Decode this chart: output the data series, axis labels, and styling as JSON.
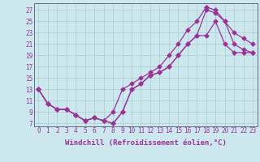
{
  "background_color": "#cce8ee",
  "grid_color": "#aacccc",
  "line_color": "#993399",
  "marker": "D",
  "markersize": 2.5,
  "linewidth": 0.9,
  "xlabel": "Windchill (Refroidissement éolien,°C)",
  "xlabel_fontsize": 6.5,
  "tick_fontsize": 5.5,
  "ylabel_ticks": [
    7,
    9,
    11,
    13,
    15,
    17,
    19,
    21,
    23,
    25,
    27
  ],
  "xlabel_ticks": [
    0,
    1,
    2,
    3,
    4,
    5,
    6,
    7,
    8,
    9,
    10,
    11,
    12,
    13,
    14,
    15,
    16,
    17,
    18,
    19,
    20,
    21,
    22,
    23
  ],
  "xlim": [
    -0.5,
    23.5
  ],
  "ylim": [
    6.5,
    28.2
  ],
  "line1_x": [
    0,
    1,
    2,
    3,
    4,
    5,
    6,
    7,
    8,
    9,
    10,
    11,
    12,
    13,
    14,
    15,
    16,
    17,
    18,
    19,
    20,
    21,
    22,
    23
  ],
  "line1_y": [
    13,
    10.5,
    9.5,
    9.5,
    8.5,
    7.5,
    8,
    7.5,
    7,
    9,
    13,
    14,
    15.5,
    16,
    17,
    19,
    21,
    22.5,
    22.5,
    25,
    21,
    19.5,
    19.5,
    19.5
  ],
  "line2_x": [
    0,
    1,
    2,
    3,
    4,
    5,
    6,
    7,
    8,
    9,
    10,
    11,
    12,
    13,
    14,
    15,
    16,
    17,
    18
  ],
  "line2_y": [
    13,
    10.5,
    9.5,
    9.5,
    8.5,
    7.5,
    8,
    7.5,
    9,
    13,
    14,
    15,
    16,
    17,
    19,
    21,
    23.5,
    25,
    27.5
  ],
  "line3_x": [
    18,
    19,
    20,
    21,
    22,
    23
  ],
  "line3_y": [
    27.5,
    27,
    25,
    23,
    22,
    21
  ],
  "line4_x": [
    0,
    1,
    2,
    3,
    4,
    5,
    6,
    7,
    8,
    9,
    10,
    11,
    12,
    13,
    14,
    15,
    16,
    17,
    18,
    19,
    20,
    21,
    22,
    23
  ],
  "line4_y": [
    13,
    10.5,
    9.5,
    9.5,
    8.5,
    7.5,
    8,
    7.5,
    7,
    9,
    13,
    14,
    15.5,
    16,
    17,
    19,
    21,
    22.5,
    27,
    26.5,
    25,
    21,
    20,
    19.5
  ]
}
